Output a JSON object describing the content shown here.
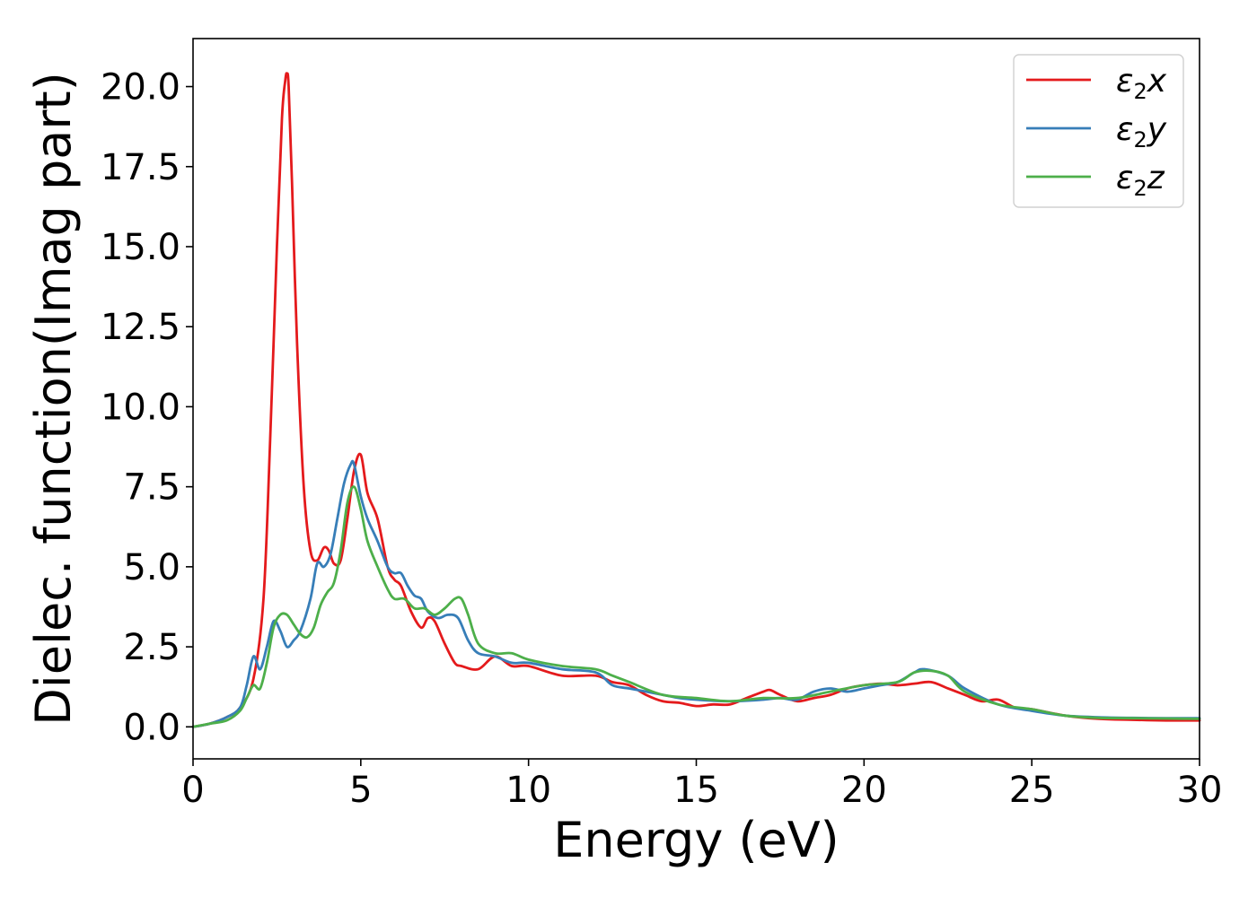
{
  "chart_data": {
    "type": "line",
    "xlabel": "Energy (eV)",
    "ylabel": "Dielec. function(Imag part)",
    "xlim": [
      0,
      30
    ],
    "ylim": [
      -1,
      21.5
    ],
    "xticks": [
      0,
      5,
      10,
      15,
      20,
      25,
      30
    ],
    "xtick_labels": [
      "0",
      "5",
      "10",
      "15",
      "20",
      "25",
      "30"
    ],
    "yticks": [
      0,
      2.5,
      5,
      7.5,
      10,
      12.5,
      15,
      17.5,
      20
    ],
    "ytick_labels": [
      "0.0",
      "2.5",
      "5.0",
      "7.5",
      "10.0",
      "12.5",
      "15.0",
      "17.5",
      "20.0"
    ],
    "grid": false,
    "legend_position": "top-right",
    "series": [
      {
        "name": "ε₂x",
        "legend_main": "ε",
        "legend_sub": "2",
        "legend_suffix": "x",
        "color": "#e41a1c",
        "x": [
          0,
          0.5,
          1.0,
          1.4,
          1.8,
          2.1,
          2.3,
          2.5,
          2.65,
          2.75,
          2.8,
          2.85,
          2.95,
          3.1,
          3.3,
          3.5,
          3.7,
          3.9,
          4.05,
          4.2,
          4.4,
          4.6,
          4.8,
          5.0,
          5.2,
          5.5,
          5.8,
          6.0,
          6.2,
          6.5,
          6.8,
          7.0,
          7.2,
          7.5,
          7.8,
          8.0,
          8.5,
          9.0,
          9.5,
          10,
          11,
          12,
          12.5,
          13,
          13.5,
          14,
          14.5,
          15,
          15.5,
          16,
          16.5,
          17,
          17.2,
          17.5,
          18,
          18.5,
          19,
          19.5,
          20,
          20.5,
          21,
          21.5,
          22,
          22.5,
          23,
          23.5,
          24,
          24.5,
          25,
          26,
          27,
          28,
          29,
          30
        ],
        "y": [
          0.0,
          0.1,
          0.3,
          0.6,
          1.5,
          4.0,
          9.0,
          15.0,
          19.0,
          20.2,
          20.4,
          20.0,
          17.0,
          12.0,
          7.5,
          5.5,
          5.2,
          5.6,
          5.5,
          5.1,
          5.2,
          6.5,
          8.0,
          8.5,
          7.3,
          6.5,
          5.0,
          4.6,
          4.4,
          3.6,
          3.1,
          3.4,
          3.3,
          2.6,
          2.0,
          1.9,
          1.8,
          2.2,
          1.9,
          1.9,
          1.6,
          1.6,
          1.4,
          1.3,
          1.0,
          0.8,
          0.75,
          0.65,
          0.7,
          0.7,
          0.9,
          1.1,
          1.15,
          1.0,
          0.8,
          0.9,
          1.0,
          1.2,
          1.3,
          1.35,
          1.3,
          1.35,
          1.4,
          1.2,
          1.0,
          0.8,
          0.85,
          0.6,
          0.55,
          0.35,
          0.25,
          0.22,
          0.2,
          0.2
        ]
      },
      {
        "name": "ε₂y",
        "legend_main": "ε",
        "legend_sub": "2",
        "legend_suffix": "y",
        "color": "#377eb8",
        "x": [
          0,
          0.5,
          1.0,
          1.4,
          1.6,
          1.8,
          2.0,
          2.2,
          2.4,
          2.6,
          2.8,
          3.0,
          3.2,
          3.5,
          3.7,
          3.9,
          4.1,
          4.3,
          4.5,
          4.7,
          4.8,
          5.0,
          5.2,
          5.5,
          5.8,
          6.0,
          6.2,
          6.4,
          6.6,
          6.8,
          7.0,
          7.3,
          7.6,
          7.9,
          8.2,
          8.5,
          9.0,
          9.5,
          10,
          11,
          12,
          12.5,
          13,
          13.5,
          14,
          14.5,
          15,
          16,
          17,
          17.5,
          18,
          18.5,
          19,
          19.5,
          20,
          20.5,
          21,
          21.5,
          21.8,
          22.5,
          23,
          24,
          25,
          26,
          27,
          28,
          29,
          30
        ],
        "y": [
          0.0,
          0.1,
          0.3,
          0.6,
          1.3,
          2.2,
          1.8,
          2.5,
          3.3,
          3.0,
          2.5,
          2.7,
          3.0,
          4.0,
          5.1,
          5.0,
          5.4,
          6.5,
          7.6,
          8.2,
          8.2,
          7.2,
          6.5,
          5.8,
          5.0,
          4.8,
          4.8,
          4.4,
          4.1,
          4.0,
          3.6,
          3.4,
          3.5,
          3.4,
          2.7,
          2.3,
          2.2,
          2.0,
          2.0,
          1.8,
          1.7,
          1.3,
          1.2,
          1.1,
          1.0,
          0.9,
          0.85,
          0.8,
          0.85,
          0.9,
          0.85,
          1.1,
          1.2,
          1.1,
          1.2,
          1.3,
          1.4,
          1.7,
          1.8,
          1.6,
          1.2,
          0.7,
          0.5,
          0.35,
          0.3,
          0.28,
          0.27,
          0.27
        ]
      },
      {
        "name": "ε₂z",
        "legend_main": "ε",
        "legend_sub": "2",
        "legend_suffix": "z",
        "color": "#4daf4a",
        "x": [
          0,
          0.5,
          1.0,
          1.4,
          1.6,
          1.8,
          2.0,
          2.2,
          2.4,
          2.6,
          2.8,
          3.0,
          3.2,
          3.4,
          3.6,
          3.8,
          4.0,
          4.2,
          4.4,
          4.6,
          4.8,
          5.0,
          5.2,
          5.5,
          5.8,
          6.0,
          6.3,
          6.6,
          6.9,
          7.2,
          7.5,
          7.8,
          8.0,
          8.2,
          8.5,
          9.0,
          9.5,
          10,
          11,
          12,
          12.5,
          13,
          14,
          15,
          16,
          17,
          18,
          19,
          20,
          21,
          21.5,
          22,
          22.5,
          23,
          24,
          25,
          26,
          27,
          28,
          29,
          30
        ],
        "y": [
          0.0,
          0.1,
          0.2,
          0.5,
          0.9,
          1.3,
          1.2,
          2.0,
          3.1,
          3.5,
          3.5,
          3.2,
          2.9,
          2.8,
          3.1,
          3.8,
          4.2,
          4.5,
          5.5,
          7.0,
          7.5,
          6.8,
          5.8,
          5.0,
          4.3,
          4.0,
          4.0,
          3.7,
          3.7,
          3.5,
          3.7,
          4.0,
          4.0,
          3.5,
          2.6,
          2.3,
          2.3,
          2.1,
          1.9,
          1.8,
          1.6,
          1.4,
          1.0,
          0.9,
          0.8,
          0.9,
          0.9,
          1.1,
          1.3,
          1.4,
          1.7,
          1.75,
          1.6,
          1.1,
          0.7,
          0.55,
          0.35,
          0.28,
          0.27,
          0.26,
          0.25
        ]
      }
    ]
  }
}
